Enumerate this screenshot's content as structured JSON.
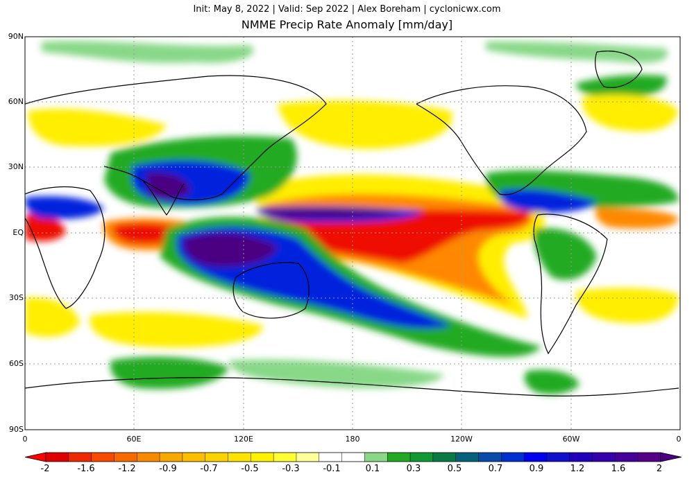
{
  "header": {
    "subtitle": "Init: May 8, 2022 | Valid: Sep 2022 | Alex Boreham | cyclonicwx.com",
    "title": "NMME Precip Rate Anomaly [mm/day]"
  },
  "axes": {
    "lat_labels": [
      "90N",
      "60N",
      "30N",
      "EQ",
      "30S",
      "60S",
      "90S"
    ],
    "lon_labels": [
      "0",
      "60E",
      "120E",
      "180",
      "120W",
      "60W",
      "0"
    ]
  },
  "colorbar": {
    "labels": [
      "-2",
      "-1.6",
      "-1.2",
      "-0.9",
      "-0.7",
      "-0.5",
      "-0.3",
      "-0.1",
      "0.1",
      "0.3",
      "0.5",
      "0.7",
      "0.9",
      "1.2",
      "1.6",
      "2"
    ],
    "colors": [
      "#e00000",
      "#ee2800",
      "#f54a00",
      "#f76a00",
      "#f88a00",
      "#f9a800",
      "#fbbf00",
      "#fcd200",
      "#fde300",
      "#fff200",
      "#ffff33",
      "#ffff99",
      "#ffffff",
      "#ffffff",
      "#88d888",
      "#22aa22",
      "#119933",
      "#0a7a44",
      "#06617a",
      "#0a4aaa",
      "#0030d0",
      "#0000ee",
      "#1010cc",
      "#2200bb",
      "#3300aa",
      "#440099",
      "#550088"
    ],
    "under_color": "#ff0000",
    "over_color": "#4b0082"
  },
  "colors": {
    "dry_strong": "#ee1100",
    "dry_mid": "#ff8800",
    "dry_weak": "#ffee00",
    "wet_weak": "#88d888",
    "wet_mid": "#118833",
    "wet_strong": "#0022dd",
    "wet_max": "#4b0082"
  }
}
